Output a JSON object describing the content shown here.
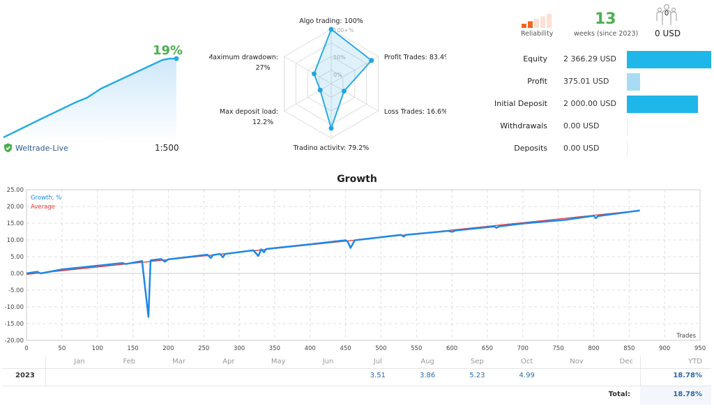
{
  "summary": {
    "growth_percent": "19%",
    "broker": "Weltrade-Live",
    "leverage": "1:500",
    "sparkline_color": "#29abe2"
  },
  "radar": {
    "axes": [
      {
        "label": "Algo trading: 100%",
        "value": 100
      },
      {
        "label": "Profit Trades: 83.4%",
        "value": 83.4
      },
      {
        "label": "Loss Trades: 16.6%",
        "value": 16.6
      },
      {
        "label": "Trading activity: 79.2%",
        "value": 79.2
      },
      {
        "label": "Max deposit load:",
        "label2": "12.2%",
        "value": 12.2
      },
      {
        "label": "Maximum drawdown:",
        "label2": "27%",
        "value": 27
      }
    ],
    "ring_labels": [
      "100+%",
      "50%",
      "0%"
    ]
  },
  "stats": {
    "reliability_label": "Reliability",
    "reliability_level": 2,
    "weeks": "13",
    "weeks_label": "weeks (since 2023)",
    "subscribers": "0",
    "subscription_price": "0 USD",
    "rows": [
      {
        "label": "Equity",
        "value": "2 366.29 USD",
        "amount": 2366.29,
        "color": "#1fb6ea"
      },
      {
        "label": "Profit",
        "value": "375.01 USD",
        "amount": 375.01,
        "color": "#a8dcf5"
      },
      {
        "label": "Initial Deposit",
        "value": "2 000.00 USD",
        "amount": 2000,
        "color": "#1fb6ea"
      },
      {
        "label": "Withdrawals",
        "value": "0.00 USD",
        "amount": 0,
        "color": "#1fb6ea"
      },
      {
        "label": "Deposits",
        "value": "0.00 USD",
        "amount": 0,
        "color": "#1fb6ea"
      }
    ]
  },
  "chart_data": {
    "type": "line",
    "title": "Growth",
    "xlabel": "Trades",
    "ylabel": "",
    "xlim": [
      0,
      950
    ],
    "ylim": [
      -20,
      25
    ],
    "xticks": [
      0,
      50,
      100,
      150,
      200,
      250,
      300,
      350,
      400,
      450,
      500,
      550,
      600,
      650,
      700,
      750,
      800,
      850,
      900,
      950
    ],
    "yticks": [
      "25.00",
      "20.00",
      "15.00",
      "10.00",
      "5.00",
      "0.00",
      "-5.00",
      "-10.00",
      "-15.00",
      "-20.00"
    ],
    "grid": true,
    "legend": "top-left",
    "series": [
      {
        "name": "Growth, %",
        "color": "#1e88e5",
        "points": [
          [
            0,
            0
          ],
          [
            15,
            0.5
          ],
          [
            20,
            0
          ],
          [
            50,
            1.2
          ],
          [
            100,
            2.3
          ],
          [
            135,
            3.1
          ],
          [
            140,
            2.8
          ],
          [
            163,
            3.7
          ],
          [
            172,
            -13
          ],
          [
            175,
            3.9
          ],
          [
            190,
            4.3
          ],
          [
            195,
            3.5
          ],
          [
            200,
            4.2
          ],
          [
            255,
            5.6
          ],
          [
            260,
            4.6
          ],
          [
            263,
            5.5
          ],
          [
            273,
            5.8
          ],
          [
            277,
            4.8
          ],
          [
            280,
            5.8
          ],
          [
            320,
            6.9
          ],
          [
            327,
            5.2
          ],
          [
            331,
            7.2
          ],
          [
            335,
            6.3
          ],
          [
            338,
            7.3
          ],
          [
            400,
            8.7
          ],
          [
            450,
            9.9
          ],
          [
            453,
            9.5
          ],
          [
            457,
            7.6
          ],
          [
            463,
            9.9
          ],
          [
            500,
            10.8
          ],
          [
            528,
            11.5
          ],
          [
            532,
            11.0
          ],
          [
            535,
            11.5
          ],
          [
            595,
            12.7
          ],
          [
            600,
            12.4
          ],
          [
            605,
            12.8
          ],
          [
            660,
            14.0
          ],
          [
            663,
            13.6
          ],
          [
            666,
            14.0
          ],
          [
            700,
            14.9
          ],
          [
            760,
            16.0
          ],
          [
            800,
            17.2
          ],
          [
            803,
            16.5
          ],
          [
            806,
            17.1
          ],
          [
            865,
            18.8
          ]
        ]
      },
      {
        "name": "Average",
        "color": "#e53935",
        "points": [
          [
            0,
            -0.3
          ],
          [
            865,
            18.8
          ]
        ]
      }
    ]
  },
  "monthly": {
    "months": [
      "Jan",
      "Feb",
      "Mar",
      "Apr",
      "May",
      "Jun",
      "Jul",
      "Aug",
      "Sep",
      "Oct",
      "Nov",
      "Dec"
    ],
    "ytd_header": "YTD",
    "rows": [
      {
        "year": "2023",
        "values": [
          "",
          "",
          "",
          "",
          "",
          "",
          "3.51",
          "3.86",
          "5.23",
          "4.99",
          "",
          ""
        ],
        "ytd": "18.78%"
      }
    ],
    "total_label": "Total:",
    "total": "18.78%"
  }
}
